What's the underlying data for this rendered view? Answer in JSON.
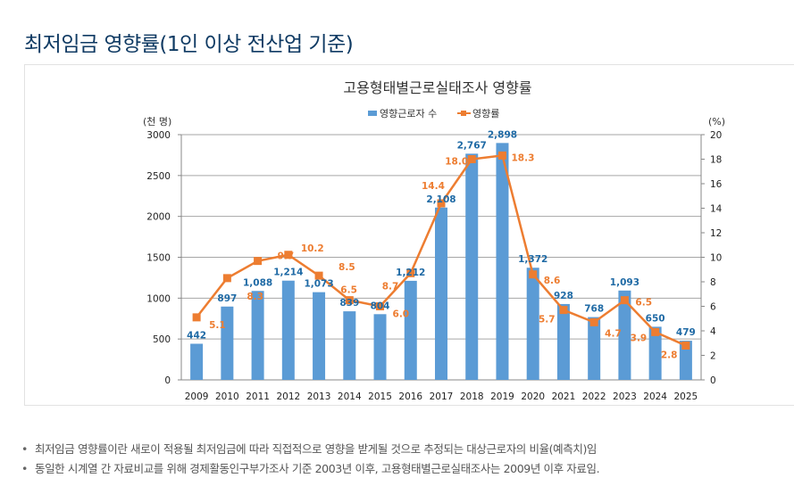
{
  "page": {
    "title": "최저임금 영향률(1인 이상 전산업 기준)",
    "notes": [
      "최저임금 영향률이란 새로이 적용될 최저임금에 따라 직접적으로 영향을 받게될 것으로 추정되는 대상근로자의 비율(예측치)임",
      "동일한 시계열 간 자료비교를 위해 경제활동인구부가조사 기준 2003년 이후, 고용형태별근로실태조사는 2009년 이후 자료임."
    ]
  },
  "chart_data": {
    "type": "bar+line",
    "title": "고용형태별근로실태조사 영향률",
    "categories": [
      "2009",
      "2010",
      "2011",
      "2012",
      "2013",
      "2014",
      "2015",
      "2016",
      "2017",
      "2018",
      "2019",
      "2020",
      "2021",
      "2022",
      "2023",
      "2024",
      "2025"
    ],
    "series": [
      {
        "name": "영향근로자 수",
        "type": "bar",
        "axis": "left",
        "color": "#5b9bd5",
        "values": [
          442,
          897,
          1088,
          1214,
          1073,
          839,
          804,
          1212,
          2108,
          2767,
          2898,
          1372,
          928,
          768,
          1093,
          650,
          479
        ],
        "labels": [
          "442",
          "897",
          "1,088",
          "1,214",
          "1,073",
          "839",
          "804",
          "1,212",
          "2,108",
          "2,767",
          "2,898",
          "1,372",
          "928",
          "768",
          "1,093",
          "650",
          "479"
        ]
      },
      {
        "name": "영향률",
        "type": "line",
        "axis": "right",
        "color": "#ed7d31",
        "values": [
          5.1,
          8.3,
          9.7,
          10.2,
          8.5,
          6.5,
          6.0,
          8.7,
          14.4,
          18.0,
          18.3,
          8.6,
          5.7,
          4.7,
          6.5,
          3.9,
          2.8
        ],
        "labels": [
          "5.1",
          "8.3",
          "9.7",
          "10.2",
          "8.5",
          "6.5",
          "6.0",
          "8.7",
          "14.4",
          "18.0",
          "18.3",
          "8.6",
          "5.7",
          "4.7",
          "6.5",
          "3.9",
          "2.8"
        ]
      }
    ],
    "ylabel_left": "(천 명)",
    "ylabel_right": "(%)",
    "ylim_left": [
      0,
      3000
    ],
    "yticks_left": [
      "0",
      "500",
      "1000",
      "1500",
      "2000",
      "2500",
      "3000"
    ],
    "ylim_right": [
      0,
      20
    ],
    "yticks_right": [
      "0",
      "2",
      "4",
      "6",
      "8",
      "10",
      "12",
      "14",
      "16",
      "18",
      "20"
    ],
    "grid": true,
    "legend_position": "top"
  }
}
